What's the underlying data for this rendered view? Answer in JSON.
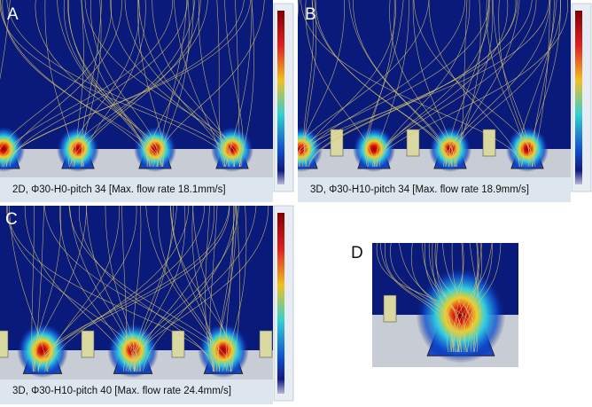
{
  "panels": [
    {
      "letter": "A",
      "caption": "2D, Φ30-H0-pitch 34 [Max. flow rate 18.1mm/s]"
    },
    {
      "letter": "B",
      "caption": "3D, Φ30-H10-pitch 34 [Max. flow rate 18.9mm/s]"
    },
    {
      "letter": "C",
      "caption": "3D, Φ30-H10-pitch 40 [Max. flow rate 24.4mm/s]"
    },
    {
      "letter": "D"
    }
  ]
}
